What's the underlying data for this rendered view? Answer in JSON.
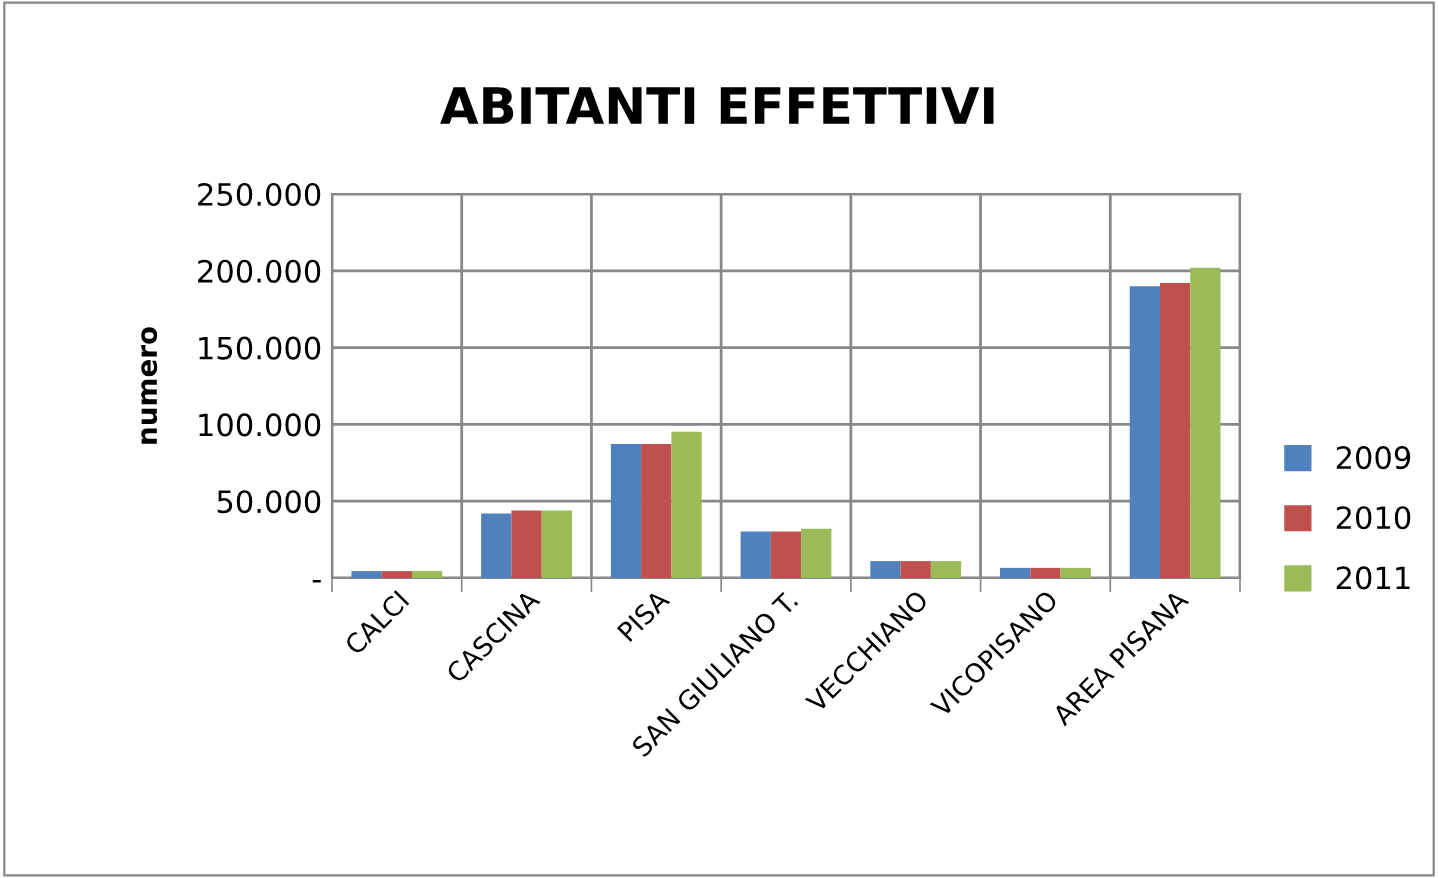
{
  "chart_data": {
    "type": "bar",
    "title": "ABITANTI EFFETTIVI",
    "ylabel": "numero",
    "categories": [
      "CALCI",
      "CASCINA",
      "PISA",
      "SAN GIULIANO T.",
      "VECCHIANO",
      "VICOPISANO",
      "AREA PISANA"
    ],
    "series": [
      {
        "name": "2009",
        "color": "#4f81bd",
        "values": [
          4500,
          42000,
          87300,
          30300,
          11000,
          6600,
          190000
        ]
      },
      {
        "name": "2010",
        "color": "#c0504d",
        "values": [
          4500,
          44000,
          87300,
          30300,
          11000,
          6600,
          192000
        ]
      },
      {
        "name": "2011",
        "color": "#9bbb59",
        "values": [
          4500,
          44000,
          95200,
          32000,
          11000,
          6600,
          202000
        ]
      }
    ],
    "ylim": [
      0,
      250000
    ],
    "yticks": [
      {
        "value": 0,
        "label": "-"
      },
      {
        "value": 50000,
        "label": "50.000"
      },
      {
        "value": 100000,
        "label": "100.000"
      },
      {
        "value": 150000,
        "label": "150.000"
      },
      {
        "value": 200000,
        "label": "200.000"
      },
      {
        "value": 250000,
        "label": "250.000"
      }
    ],
    "grid": true,
    "legend": "right"
  }
}
